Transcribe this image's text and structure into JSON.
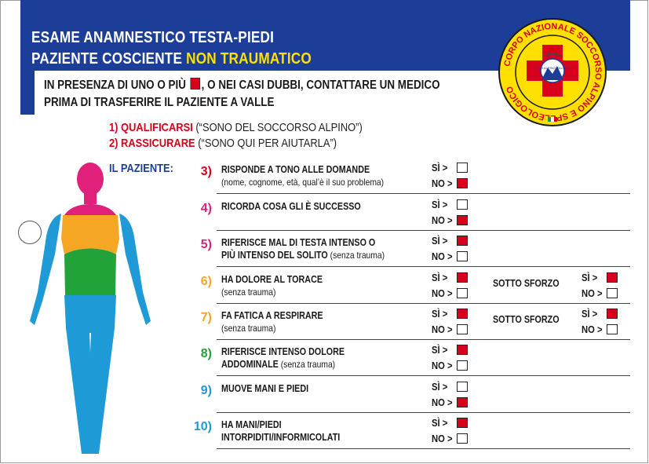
{
  "header": {
    "title_line1": "ESAME ANAMNESTICO TESTA-PIEDI",
    "title_line2_plain": "PAZIENTE COSCIENTE ",
    "title_line2_highlight": "NON TRAUMATICO"
  },
  "warning": {
    "part1": "IN PRESENZA DI UNO O PIÙ",
    "part2": ", O NEI CASI DUBBI, CONTATTARE UN MEDICO",
    "line2": "PRIMA DI TRASFERIRE IL PAZIENTE A VALLE"
  },
  "steps": [
    {
      "label": "1) QUALIFICARSI",
      "detail": " (“SONO DEL SOCCORSO ALPINO”)"
    },
    {
      "label": "2) RASSICURARE",
      "detail": " (“SONO QUI PER AIUTARLA”)"
    }
  ],
  "patient_label": "IL PAZIENTE:",
  "logo": {
    "ring_text": "CORPO NAZIONALE SOCCORSO ALPINO E SPELEOLOGICO",
    "emblem": "CLUB ALPINO ITALIANO"
  },
  "answer_labels": {
    "yes": "SÌ  >",
    "no": "NO >"
  },
  "questions": [
    {
      "num": "3)",
      "color": "#d9001b",
      "line1": "RISPONDE A TONO ALLE DOMANDE",
      "line1_note": "",
      "line2": "",
      "line2_note": "(nome, cognome, età, qual’è il suo problema)",
      "yes_red": false,
      "no_red": true,
      "extra": null
    },
    {
      "num": "4)",
      "color": "#e0207a",
      "line1": "RICORDA COSA GLI È SUCCESSO",
      "line1_note": "",
      "line2": "",
      "line2_note": "",
      "yes_red": false,
      "no_red": true,
      "extra": null
    },
    {
      "num": "5)",
      "color": "#e0207a",
      "line1": "RIFERISCE MAL DI TESTA INTENSO O",
      "line1_note": "",
      "line2": "PIÙ INTENSO DEL SOLITO",
      "line2_note": " (senza trauma)",
      "yes_red": true,
      "no_red": false,
      "extra": null
    },
    {
      "num": "6)",
      "color": "#f5a623",
      "line1": "HA DOLORE AL TORACE",
      "line1_note": "",
      "line2": "",
      "line2_note": "(senza trauma)",
      "yes_red": true,
      "no_red": false,
      "extra": {
        "label": "SOTTO SFORZO",
        "yes_red": true,
        "no_red": false
      }
    },
    {
      "num": "7)",
      "color": "#f5a623",
      "line1": "FA FATICA A RESPIRARE",
      "line1_note": "",
      "line2": "",
      "line2_note": "(senza trauma)",
      "yes_red": true,
      "no_red": false,
      "extra": {
        "label": "SOTTO SFORZO",
        "yes_red": true,
        "no_red": false
      }
    },
    {
      "num": "8)",
      "color": "#22a33a",
      "line1": "RIFERISCE INTENSO DOLORE",
      "line1_note": "",
      "line2": "ADDOMINALE",
      "line2_note": " (senza trauma)",
      "yes_red": true,
      "no_red": false,
      "extra": null
    },
    {
      "num": "9)",
      "color": "#1e9ad6",
      "line1": "MUOVE MANI E PIEDI",
      "line1_note": "",
      "line2": "",
      "line2_note": "",
      "yes_red": false,
      "no_red": true,
      "extra": null
    },
    {
      "num": "10)",
      "color": "#1e9ad6",
      "line1": "HA MANI/PIEDI",
      "line1_note": "",
      "line2": "INTORPIDITI/INFORMICOLATI",
      "line2_note": "",
      "yes_red": true,
      "no_red": false,
      "extra": null
    }
  ]
}
